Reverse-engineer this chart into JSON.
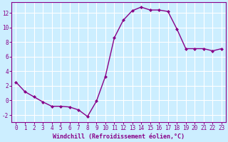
{
  "x": [
    0,
    1,
    2,
    3,
    4,
    5,
    6,
    7,
    8,
    9,
    10,
    11,
    12,
    13,
    14,
    15,
    16,
    17,
    18,
    19,
    20,
    21,
    22,
    23
  ],
  "y": [
    2.5,
    1.2,
    0.5,
    -0.2,
    -0.8,
    -0.8,
    -0.9,
    -1.3,
    -2.2,
    -0.1,
    3.3,
    8.6,
    11.0,
    12.3,
    12.8,
    12.4,
    12.4,
    12.2,
    9.8,
    7.1,
    7.1,
    7.1,
    6.8,
    7.1
  ],
  "line_color": "#880088",
  "marker": "D",
  "markersize": 2.0,
  "linewidth": 1.0,
  "background_color": "#cceeff",
  "grid_color": "#ffffff",
  "xlabel": "Windchill (Refroidissement éolien,°C)",
  "xlabel_fontsize": 6.0,
  "tick_color": "#880088",
  "tick_fontsize": 5.5,
  "ylim": [
    -3,
    13.5
  ],
  "xlim": [
    -0.5,
    23.5
  ],
  "yticks": [
    -2,
    0,
    2,
    4,
    6,
    8,
    10,
    12
  ],
  "xticks": [
    0,
    1,
    2,
    3,
    4,
    5,
    6,
    7,
    8,
    9,
    10,
    11,
    12,
    13,
    14,
    15,
    16,
    17,
    18,
    19,
    20,
    21,
    22,
    23
  ],
  "spine_color": "#880088",
  "spine_linewidth": 0.8
}
